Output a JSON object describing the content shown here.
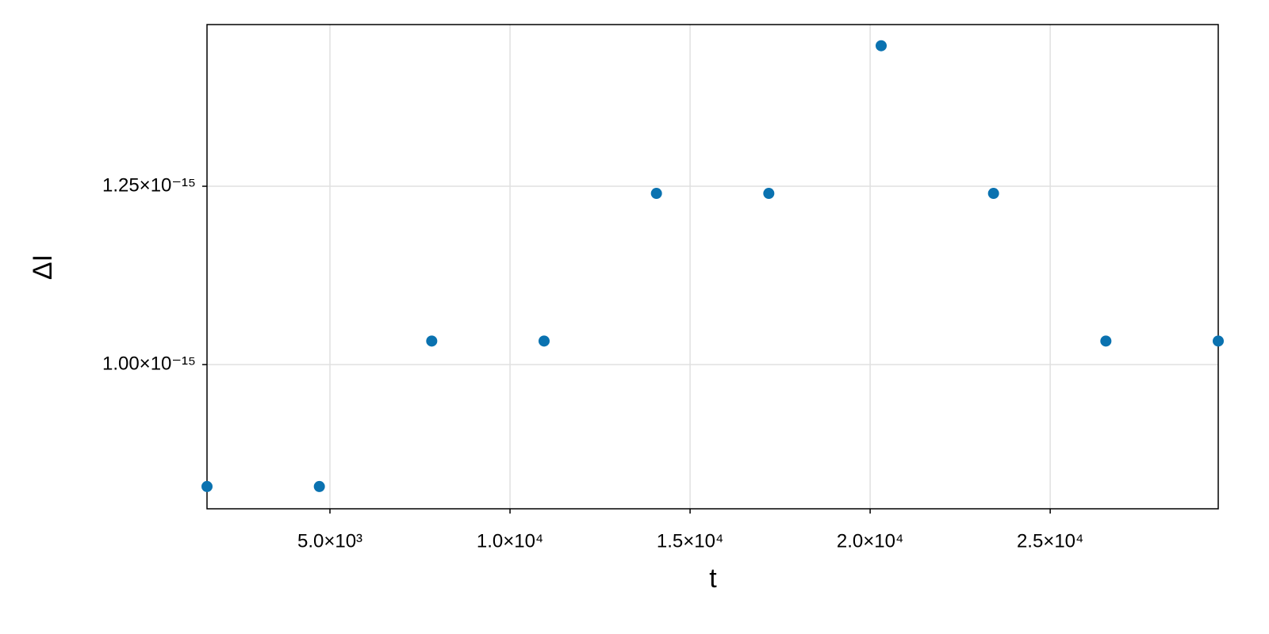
{
  "chart_data": {
    "type": "scatter",
    "x_label": "t",
    "y_label": "ΔI",
    "x": [
      1586,
      4706,
      7826,
      10946,
      14066,
      17186,
      20306,
      23426,
      26546,
      29666
    ],
    "series": [
      {
        "color": "#0a72b0",
        "values": [
          8.29e-16,
          8.29e-16,
          1.033e-15,
          1.033e-15,
          1.24e-15,
          1.24e-15,
          1.447e-15,
          1.24e-15,
          1.033e-15,
          1.033e-15
        ]
      }
    ],
    "xlim": [
      1586,
      29666
    ],
    "xticks": [
      {
        "value": 5000,
        "label": "5.0×10³"
      },
      {
        "value": 10000,
        "label": "1.0×10⁴"
      },
      {
        "value": 15000,
        "label": "1.5×10⁴"
      },
      {
        "value": 20000,
        "label": "2.0×10⁴"
      },
      {
        "value": 25000,
        "label": "2.5×10⁴"
      }
    ],
    "ylim": [
      7.978e-16,
      1.4767e-15
    ],
    "yticks": [
      {
        "value": 1e-15,
        "label": "1.00×10⁻¹⁵"
      },
      {
        "value": 1.25e-15,
        "label": "1.25×10⁻¹⁵"
      }
    ],
    "grid": true
  }
}
